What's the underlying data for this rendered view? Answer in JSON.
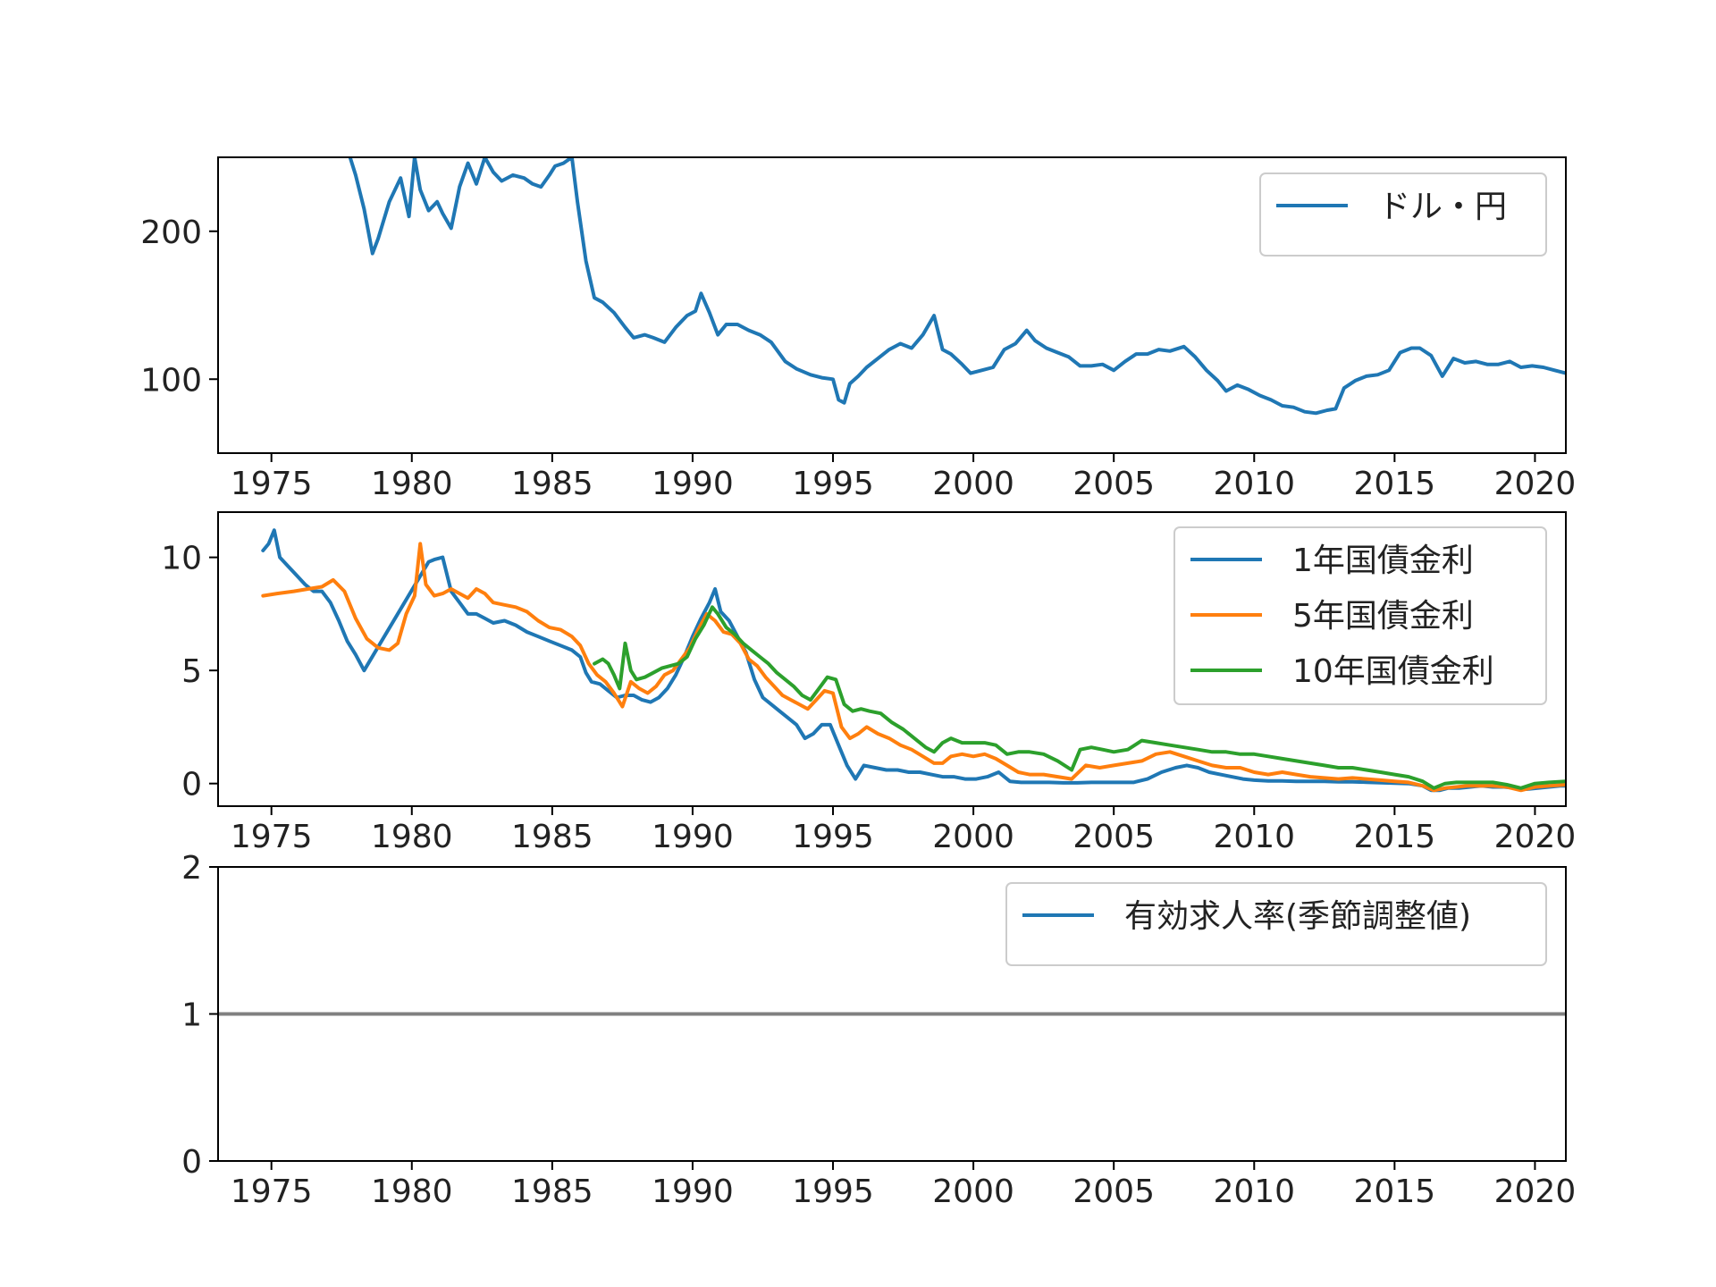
{
  "chart_data": [
    {
      "type": "line",
      "title": "",
      "xlabel": "",
      "ylabel": "",
      "xlim": [
        1973.1,
        2021.1
      ],
      "ylim": [
        50,
        250
      ],
      "x_ticks": [
        1975,
        1980,
        1985,
        1990,
        1995,
        2000,
        2005,
        2010,
        2015,
        2020
      ],
      "y_ticks": [
        100,
        200
      ],
      "grid": false,
      "legend_position": "upper-right",
      "series": [
        {
          "name": "ドル・円",
          "color": "#1f77b4",
          "x": [
            1977.8,
            1978.0,
            1978.3,
            1978.6,
            1978.8,
            1979.2,
            1979.6,
            1979.9,
            1980.1,
            1980.3,
            1980.6,
            1980.9,
            1981.1,
            1981.4,
            1981.7,
            1982.0,
            1982.3,
            1982.6,
            1982.9,
            1983.2,
            1983.6,
            1984.0,
            1984.3,
            1984.6,
            1984.9,
            1985.1,
            1985.4,
            1985.7,
            1985.9,
            1986.2,
            1986.5,
            1986.8,
            1987.2,
            1987.6,
            1987.9,
            1988.3,
            1988.6,
            1989.0,
            1989.4,
            1989.8,
            1990.1,
            1990.3,
            1990.6,
            1990.9,
            1991.2,
            1991.6,
            1992.0,
            1992.4,
            1992.8,
            1993.3,
            1993.7,
            1994.2,
            1994.6,
            1995.0,
            1995.2,
            1995.4,
            1995.6,
            1995.9,
            1996.2,
            1996.6,
            1997.0,
            1997.4,
            1997.8,
            1998.2,
            1998.6,
            1998.9,
            1999.2,
            1999.6,
            1999.9,
            2000.3,
            2000.7,
            2001.1,
            2001.5,
            2001.9,
            2002.2,
            2002.6,
            2003.0,
            2003.4,
            2003.8,
            2004.2,
            2004.6,
            2005.0,
            2005.4,
            2005.8,
            2006.2,
            2006.6,
            2007.0,
            2007.5,
            2007.9,
            2008.3,
            2008.7,
            2009.0,
            2009.4,
            2009.8,
            2010.2,
            2010.6,
            2011.0,
            2011.4,
            2011.8,
            2012.2,
            2012.6,
            2012.9,
            2013.2,
            2013.6,
            2014.0,
            2014.4,
            2014.8,
            2015.2,
            2015.6,
            2015.9,
            2016.3,
            2016.7,
            2017.1,
            2017.5,
            2017.9,
            2018.3,
            2018.7,
            2019.1,
            2019.5,
            2019.9,
            2020.3,
            2020.7,
            2021.1
          ],
          "y": [
            250,
            238,
            215,
            185,
            195,
            220,
            236,
            210,
            250,
            228,
            214,
            220,
            212,
            202,
            230,
            246,
            232,
            250,
            240,
            234,
            238,
            236,
            232,
            230,
            238,
            244,
            246,
            250,
            220,
            180,
            155,
            152,
            145,
            135,
            128,
            130,
            128,
            125,
            135,
            143,
            146,
            158,
            145,
            130,
            137,
            137,
            133,
            130,
            125,
            112,
            107,
            103,
            101,
            100,
            86,
            84,
            97,
            102,
            108,
            114,
            120,
            124,
            121,
            130,
            143,
            120,
            117,
            110,
            104,
            106,
            108,
            120,
            124,
            133,
            126,
            121,
            118,
            115,
            109,
            109,
            110,
            106,
            112,
            117,
            117,
            120,
            119,
            122,
            115,
            106,
            99,
            92,
            96,
            93,
            89,
            86,
            82,
            81,
            78,
            77,
            79,
            80,
            94,
            99,
            102,
            103,
            106,
            118,
            121,
            121,
            116,
            102,
            114,
            111,
            112,
            110,
            110,
            112,
            108,
            109,
            108,
            106,
            104
          ]
        }
      ]
    },
    {
      "type": "line",
      "title": "",
      "xlabel": "",
      "ylabel": "",
      "xlim": [
        1973.1,
        2021.1
      ],
      "ylim": [
        -1,
        12
      ],
      "x_ticks": [
        1975,
        1980,
        1985,
        1990,
        1995,
        2000,
        2005,
        2010,
        2015,
        2020
      ],
      "y_ticks": [
        0,
        5,
        10
      ],
      "grid": false,
      "legend_position": "upper-right",
      "series": [
        {
          "name": "1年国債金利",
          "color": "#1f77b4",
          "x": [
            1974.7,
            1974.9,
            1975.1,
            1975.3,
            1975.6,
            1975.9,
            1976.2,
            1976.5,
            1976.8,
            1977.1,
            1977.4,
            1977.7,
            1978.0,
            1978.3,
            1980.6,
            1980.8,
            1981.1,
            1981.4,
            1981.7,
            1982.0,
            1982.3,
            1982.6,
            1982.9,
            1983.3,
            1983.7,
            1984.1,
            1984.5,
            1984.9,
            1985.3,
            1985.7,
            1986.0,
            1986.2,
            1986.4,
            1986.7,
            1987.0,
            1987.3,
            1987.6,
            1987.9,
            1988.2,
            1988.5,
            1988.8,
            1989.1,
            1989.4,
            1989.7,
            1990.0,
            1990.3,
            1990.6,
            1990.8,
            1991.0,
            1991.3,
            1991.6,
            1991.9,
            1992.2,
            1992.5,
            1992.8,
            1993.1,
            1993.4,
            1993.7,
            1994.0,
            1994.3,
            1994.6,
            1994.9,
            1995.2,
            1995.5,
            1995.8,
            1996.1,
            1996.5,
            1996.9,
            1997.3,
            1997.7,
            1998.1,
            1998.5,
            1998.9,
            1999.3,
            1999.7,
            2000.1,
            2000.5,
            2000.9,
            2001.3,
            2001.7,
            2002.2,
            2002.7,
            2003.2,
            2003.7,
            2004.2,
            2004.7,
            2005.2,
            2005.7,
            2006.2,
            2006.7,
            2007.2,
            2007.6,
            2008.0,
            2008.4,
            2008.8,
            2009.2,
            2009.6,
            2010.0,
            2010.5,
            2011.0,
            2011.5,
            2012.0,
            2012.5,
            2013.0,
            2013.5,
            2014.0,
            2014.5,
            2015.0,
            2015.5,
            2016.0,
            2016.3,
            2016.6,
            2016.9,
            2017.3,
            2017.7,
            2018.1,
            2018.5,
            2018.9,
            2019.3,
            2019.7,
            2020.1,
            2020.5,
            2020.9,
            2021.1
          ],
          "y": [
            10.3,
            10.6,
            11.2,
            10.0,
            9.6,
            9.2,
            8.8,
            8.5,
            8.5,
            8.0,
            7.2,
            6.3,
            5.7,
            5.0,
            9.8,
            9.9,
            10.0,
            8.5,
            8.0,
            7.5,
            7.5,
            7.3,
            7.1,
            7.2,
            7.0,
            6.7,
            6.5,
            6.3,
            6.1,
            5.9,
            5.6,
            4.9,
            4.5,
            4.4,
            4.1,
            3.8,
            3.9,
            3.9,
            3.7,
            3.6,
            3.8,
            4.2,
            4.8,
            5.6,
            6.5,
            7.3,
            8.0,
            8.6,
            7.6,
            7.2,
            6.5,
            5.8,
            4.6,
            3.8,
            3.5,
            3.2,
            2.9,
            2.6,
            2.0,
            2.2,
            2.6,
            2.6,
            1.7,
            0.8,
            0.2,
            0.8,
            0.7,
            0.6,
            0.6,
            0.5,
            0.5,
            0.4,
            0.3,
            0.3,
            0.2,
            0.2,
            0.3,
            0.5,
            0.1,
            0.05,
            0.05,
            0.05,
            0.03,
            0.03,
            0.05,
            0.05,
            0.05,
            0.05,
            0.2,
            0.5,
            0.7,
            0.8,
            0.7,
            0.5,
            0.4,
            0.3,
            0.2,
            0.15,
            0.12,
            0.12,
            0.1,
            0.1,
            0.1,
            0.08,
            0.08,
            0.06,
            0.04,
            0.02,
            0.0,
            -0.1,
            -0.3,
            -0.3,
            -0.2,
            -0.2,
            -0.15,
            -0.1,
            -0.15,
            -0.15,
            -0.2,
            -0.25,
            -0.2,
            -0.15,
            -0.1,
            -0.1
          ]
        },
        {
          "name": "5年国債金利",
          "color": "#ff7f0e",
          "x": [
            1974.7,
            1975.2,
            1975.8,
            1976.3,
            1976.8,
            1977.2,
            1977.6,
            1978.0,
            1978.4,
            1978.8,
            1979.2,
            1979.5,
            1979.8,
            1980.1,
            1980.3,
            1980.5,
            1980.8,
            1981.1,
            1981.4,
            1981.7,
            1982.0,
            1982.3,
            1982.6,
            1982.9,
            1983.3,
            1983.7,
            1984.1,
            1984.5,
            1984.9,
            1985.3,
            1985.7,
            1986.0,
            1986.3,
            1986.6,
            1986.9,
            1987.2,
            1987.5,
            1987.8,
            1988.1,
            1988.4,
            1988.7,
            1989.0,
            1989.3,
            1989.6,
            1989.9,
            1990.2,
            1990.5,
            1990.8,
            1991.1,
            1991.4,
            1991.7,
            1992.0,
            1992.3,
            1992.6,
            1992.9,
            1993.2,
            1993.5,
            1993.8,
            1994.1,
            1994.4,
            1994.7,
            1995.0,
            1995.3,
            1995.6,
            1995.9,
            1996.2,
            1996.6,
            1997.0,
            1997.4,
            1997.8,
            1998.2,
            1998.6,
            1998.9,
            1999.2,
            1999.6,
            2000.0,
            2000.4,
            2000.8,
            2001.2,
            2001.6,
            2002.0,
            2002.5,
            2003.0,
            2003.5,
            2004.0,
            2004.5,
            2005.0,
            2005.5,
            2006.0,
            2006.5,
            2007.0,
            2007.5,
            2008.0,
            2008.5,
            2009.0,
            2009.5,
            2010.0,
            2010.5,
            2011.0,
            2011.5,
            2012.0,
            2012.5,
            2013.0,
            2013.5,
            2014.0,
            2014.5,
            2015.0,
            2015.5,
            2016.0,
            2016.4,
            2016.8,
            2017.2,
            2017.6,
            2018.0,
            2018.5,
            2019.0,
            2019.5,
            2020.0,
            2020.5,
            2021.1
          ],
          "y": [
            8.3,
            8.4,
            8.5,
            8.6,
            8.7,
            9.0,
            8.5,
            7.3,
            6.4,
            6.0,
            5.9,
            6.2,
            7.5,
            8.3,
            10.6,
            8.8,
            8.3,
            8.4,
            8.6,
            8.4,
            8.2,
            8.6,
            8.4,
            8.0,
            7.9,
            7.8,
            7.6,
            7.2,
            6.9,
            6.8,
            6.5,
            6.1,
            5.3,
            4.8,
            4.5,
            4.0,
            3.4,
            4.5,
            4.2,
            4.0,
            4.3,
            4.8,
            5.0,
            5.5,
            6.0,
            6.8,
            7.5,
            7.2,
            6.7,
            6.6,
            6.2,
            5.5,
            5.2,
            4.7,
            4.3,
            3.9,
            3.7,
            3.5,
            3.3,
            3.7,
            4.1,
            4.0,
            2.5,
            2.0,
            2.2,
            2.5,
            2.2,
            2.0,
            1.7,
            1.5,
            1.2,
            0.9,
            0.9,
            1.2,
            1.3,
            1.2,
            1.3,
            1.1,
            0.8,
            0.5,
            0.4,
            0.4,
            0.3,
            0.2,
            0.8,
            0.7,
            0.8,
            0.9,
            1.0,
            1.3,
            1.4,
            1.2,
            1.0,
            0.8,
            0.7,
            0.7,
            0.5,
            0.4,
            0.5,
            0.4,
            0.3,
            0.25,
            0.2,
            0.25,
            0.2,
            0.15,
            0.1,
            0.05,
            -0.1,
            -0.3,
            -0.2,
            -0.15,
            -0.1,
            -0.1,
            -0.1,
            -0.15,
            -0.3,
            -0.15,
            -0.1,
            -0.05
          ]
        },
        {
          "name": "10年国債金利",
          "color": "#2ca02c",
          "x": [
            1986.5,
            1986.8,
            1987.0,
            1987.2,
            1987.4,
            1987.6,
            1987.8,
            1988.0,
            1988.3,
            1988.6,
            1988.9,
            1989.2,
            1989.5,
            1989.8,
            1990.1,
            1990.4,
            1990.7,
            1990.9,
            1991.2,
            1991.5,
            1991.8,
            1992.1,
            1992.4,
            1992.7,
            1993.0,
            1993.3,
            1993.6,
            1993.9,
            1994.2,
            1994.5,
            1994.8,
            1995.1,
            1995.4,
            1995.7,
            1996.0,
            1996.3,
            1996.7,
            1997.1,
            1997.5,
            1997.9,
            1998.3,
            1998.6,
            1998.9,
            1999.2,
            1999.6,
            2000.0,
            2000.4,
            2000.8,
            2001.2,
            2001.6,
            2002.0,
            2002.5,
            2003.0,
            2003.5,
            2003.8,
            2004.2,
            2004.6,
            2005.0,
            2005.5,
            2006.0,
            2006.5,
            2007.0,
            2007.5,
            2008.0,
            2008.5,
            2009.0,
            2009.5,
            2010.0,
            2010.5,
            2011.0,
            2011.5,
            2012.0,
            2012.5,
            2013.0,
            2013.5,
            2014.0,
            2014.5,
            2015.0,
            2015.5,
            2016.0,
            2016.4,
            2016.8,
            2017.2,
            2017.6,
            2018.0,
            2018.5,
            2019.0,
            2019.5,
            2020.0,
            2020.5,
            2021.1
          ],
          "y": [
            5.3,
            5.5,
            5.3,
            4.8,
            4.2,
            6.2,
            5.0,
            4.6,
            4.7,
            4.9,
            5.1,
            5.2,
            5.3,
            5.6,
            6.4,
            7.0,
            7.8,
            7.5,
            6.9,
            6.6,
            6.2,
            5.9,
            5.6,
            5.3,
            4.9,
            4.6,
            4.3,
            3.9,
            3.7,
            4.2,
            4.7,
            4.6,
            3.5,
            3.2,
            3.3,
            3.2,
            3.1,
            2.7,
            2.4,
            2.0,
            1.6,
            1.4,
            1.8,
            2.0,
            1.8,
            1.8,
            1.8,
            1.7,
            1.3,
            1.4,
            1.4,
            1.3,
            1.0,
            0.6,
            1.5,
            1.6,
            1.5,
            1.4,
            1.5,
            1.9,
            1.8,
            1.7,
            1.6,
            1.5,
            1.4,
            1.4,
            1.3,
            1.3,
            1.2,
            1.1,
            1.0,
            0.9,
            0.8,
            0.7,
            0.7,
            0.6,
            0.5,
            0.4,
            0.3,
            0.1,
            -0.2,
            0.0,
            0.05,
            0.05,
            0.05,
            0.05,
            -0.05,
            -0.2,
            0.0,
            0.05,
            0.1
          ]
        }
      ]
    },
    {
      "type": "line",
      "title": "",
      "xlabel": "",
      "ylabel": "",
      "xlim": [
        1973.1,
        2021.1
      ],
      "ylim": [
        0,
        2
      ],
      "x_ticks": [
        1975,
        1980,
        1985,
        1990,
        1995,
        2000,
        2005,
        2010,
        2015,
        2020
      ],
      "y_ticks": [
        0,
        1,
        2
      ],
      "grid": false,
      "legend_position": "upper-right",
      "reference_line": {
        "y": 1,
        "color": "#808080"
      },
      "series": [
        {
          "name": "有効求人率(季節調整値)",
          "color": "#1f77b4",
          "x": [],
          "y": []
        }
      ]
    }
  ]
}
